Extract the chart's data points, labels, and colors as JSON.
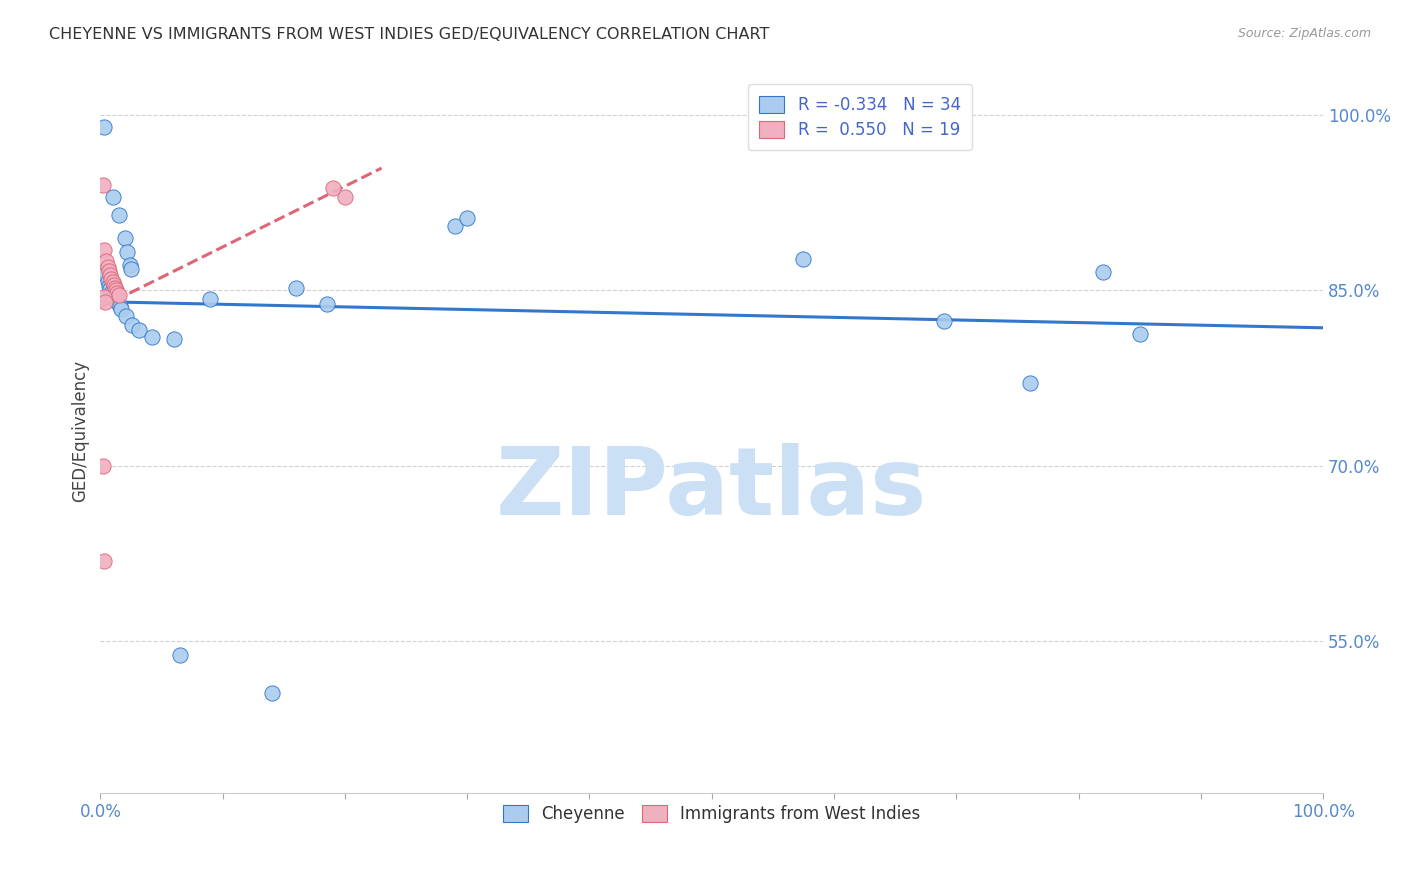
{
  "title": "CHEYENNE VS IMMIGRANTS FROM WEST INDIES GED/EQUIVALENCY CORRELATION CHART",
  "source": "Source: ZipAtlas.com",
  "ylabel": "GED/Equivalency",
  "ytick_labels": [
    "100.0%",
    "85.0%",
    "70.0%",
    "55.0%"
  ],
  "ytick_values": [
    1.0,
    0.85,
    0.7,
    0.55
  ],
  "xlim": [
    0.0,
    1.0
  ],
  "ylim": [
    0.42,
    1.04
  ],
  "legend_blue_r": "R = -0.334",
  "legend_blue_n": "N = 34",
  "legend_pink_r": "R =  0.550",
  "legend_pink_n": "N = 19",
  "blue_color": "#aaccee",
  "pink_color": "#f0b0c0",
  "blue_line_color": "#3377cc",
  "pink_line_color": "#dd6677",
  "blue_scatter": [
    [
      0.003,
      0.99
    ],
    [
      0.01,
      0.93
    ],
    [
      0.015,
      0.915
    ],
    [
      0.02,
      0.895
    ],
    [
      0.022,
      0.883
    ],
    [
      0.024,
      0.872
    ],
    [
      0.025,
      0.868
    ],
    [
      0.004,
      0.864
    ],
    [
      0.006,
      0.858
    ],
    [
      0.007,
      0.854
    ],
    [
      0.008,
      0.851
    ],
    [
      0.009,
      0.848
    ],
    [
      0.011,
      0.845
    ],
    [
      0.012,
      0.843
    ],
    [
      0.014,
      0.84
    ],
    [
      0.016,
      0.837
    ],
    [
      0.017,
      0.834
    ],
    [
      0.021,
      0.828
    ],
    [
      0.026,
      0.82
    ],
    [
      0.032,
      0.816
    ],
    [
      0.042,
      0.81
    ],
    [
      0.06,
      0.808
    ],
    [
      0.09,
      0.843
    ],
    [
      0.16,
      0.852
    ],
    [
      0.185,
      0.838
    ],
    [
      0.29,
      0.905
    ],
    [
      0.3,
      0.912
    ],
    [
      0.575,
      0.877
    ],
    [
      0.69,
      0.824
    ],
    [
      0.76,
      0.771
    ],
    [
      0.82,
      0.866
    ],
    [
      0.85,
      0.813
    ],
    [
      0.065,
      0.538
    ],
    [
      0.14,
      0.505
    ]
  ],
  "pink_scatter": [
    [
      0.002,
      0.94
    ],
    [
      0.003,
      0.885
    ],
    [
      0.005,
      0.875
    ],
    [
      0.006,
      0.87
    ],
    [
      0.007,
      0.867
    ],
    [
      0.008,
      0.863
    ],
    [
      0.009,
      0.86
    ],
    [
      0.01,
      0.857
    ],
    [
      0.011,
      0.855
    ],
    [
      0.012,
      0.852
    ],
    [
      0.013,
      0.85
    ],
    [
      0.014,
      0.848
    ],
    [
      0.015,
      0.846
    ],
    [
      0.003,
      0.844
    ],
    [
      0.004,
      0.84
    ],
    [
      0.19,
      0.938
    ],
    [
      0.2,
      0.93
    ],
    [
      0.002,
      0.7
    ],
    [
      0.003,
      0.618
    ]
  ],
  "background_color": "#ffffff",
  "grid_color": "#cccccc",
  "axis_label_color": "#5588cc",
  "tick_label_color": "#5588cc",
  "watermark": "ZIPatlas",
  "watermark_color": "#cce0f5"
}
